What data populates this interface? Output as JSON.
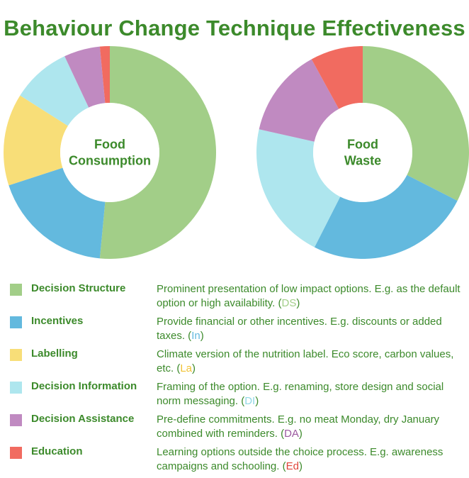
{
  "title": "Behaviour Change Technique Effectiveness",
  "chart_data": [
    {
      "type": "pie",
      "donut": true,
      "center_label": [
        "Food",
        "Consumption"
      ],
      "categories": [
        "Decision Structure",
        "Incentives",
        "Labelling",
        "Decision Information",
        "Decision Assistance",
        "Education"
      ],
      "values": [
        51.5,
        18.5,
        14.0,
        9.0,
        5.5,
        1.5
      ]
    },
    {
      "type": "pie",
      "donut": true,
      "center_label": [
        "Food",
        "Waste"
      ],
      "categories": [
        "Decision Structure",
        "Incentives",
        "Labelling",
        "Decision Information",
        "Decision Assistance",
        "Education"
      ],
      "values": [
        32.5,
        25.0,
        0,
        21.0,
        13.5,
        8.0
      ]
    }
  ],
  "colors": {
    "Decision Structure": "#a2ce88",
    "Incentives": "#63b9de",
    "Labelling": "#f8de78",
    "Decision Information": "#aee6ee",
    "Decision Assistance": "#c08ac1",
    "Education": "#f16b60",
    "text": "#3c8a2b"
  },
  "legend": [
    {
      "name": "Decision Structure",
      "desc": "Prominent presentation of low impact options. E.g. as the default option or high availability. (",
      "abbr": "DS",
      "close": ")"
    },
    {
      "name": "Incentives",
      "desc": "Provide financial or other incentives. E.g. discounts or added taxes. (",
      "abbr": "In",
      "close": ")"
    },
    {
      "name": "Labelling",
      "desc": "Climate version of the nutrition label. Eco score, carbon values, etc. (",
      "abbr": "La",
      "close": ")"
    },
    {
      "name": "Decision Information",
      "desc": "Framing of the option. E.g. renaming, store design and social norm messaging. (",
      "abbr": "DI",
      "close": ")"
    },
    {
      "name": "Decision Assistance",
      "desc": "Pre-define commitments. E.g. no meat Monday, dry January combined with reminders. (",
      "abbr": "DA",
      "close": ")"
    },
    {
      "name": "Education",
      "desc": "Learning options outside the choice process. E.g. awareness campaigns and schooling. (",
      "abbr": "Ed",
      "close": ")"
    }
  ]
}
